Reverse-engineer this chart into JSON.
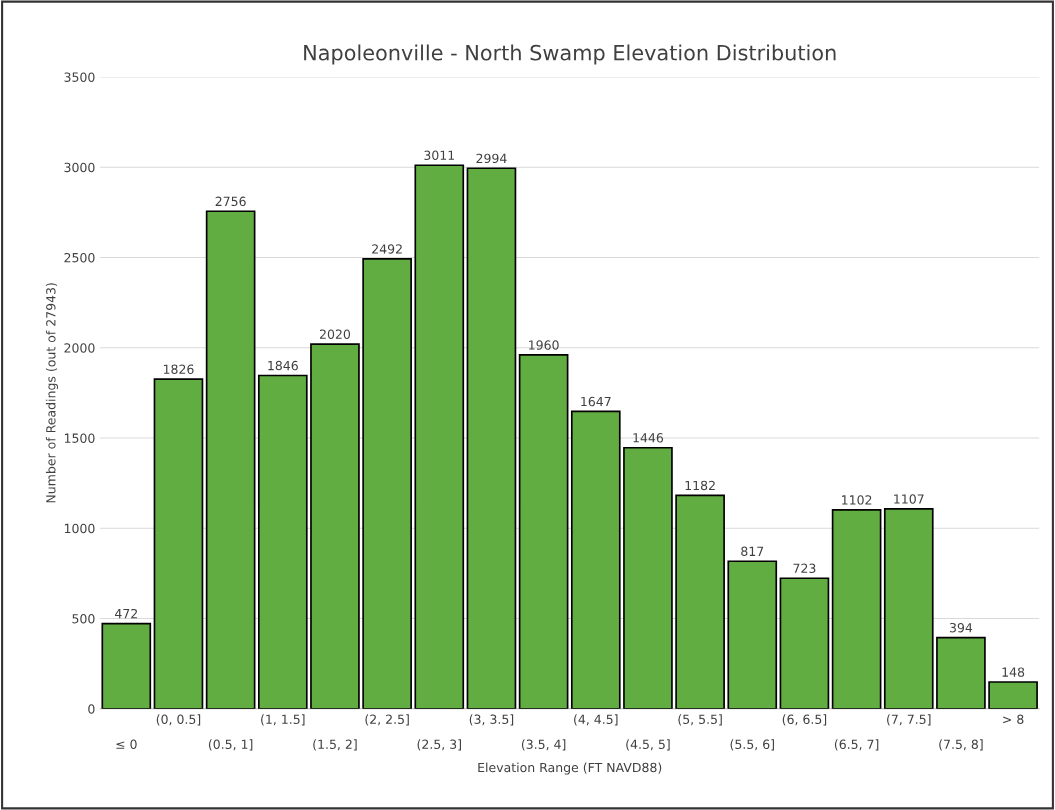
{
  "chart_data": {
    "type": "bar",
    "title": "Napoleonville - North Swamp Elevation Distribution",
    "xlabel": "Elevation Range (FT NAVD88)",
    "ylabel": "Number of Readings (out of 27943)",
    "categories": [
      "≤ 0",
      "(0, 0.5]",
      "(0.5, 1]",
      "(1, 1.5]",
      "(1.5, 2]",
      "(2, 2.5]",
      "(2.5, 3]",
      "(3, 3.5]",
      "(3.5, 4]",
      "(4, 4.5]",
      "(4.5, 5]",
      "(5, 5.5]",
      "(5.5, 6]",
      "(6, 6.5]",
      "(6.5, 7]",
      "(7, 7.5]",
      "(7.5, 8]",
      "> 8"
    ],
    "values": [
      472,
      1826,
      2756,
      1846,
      2020,
      2492,
      3011,
      2994,
      1960,
      1647,
      1446,
      1182,
      817,
      723,
      1102,
      1107,
      394,
      148
    ],
    "color": "#62ad42",
    "ylim": [
      0,
      3500
    ],
    "yticks": [
      0,
      500,
      1000,
      1500,
      2000,
      2500,
      3000,
      3500
    ],
    "grid": "y",
    "data_labels": true
  }
}
